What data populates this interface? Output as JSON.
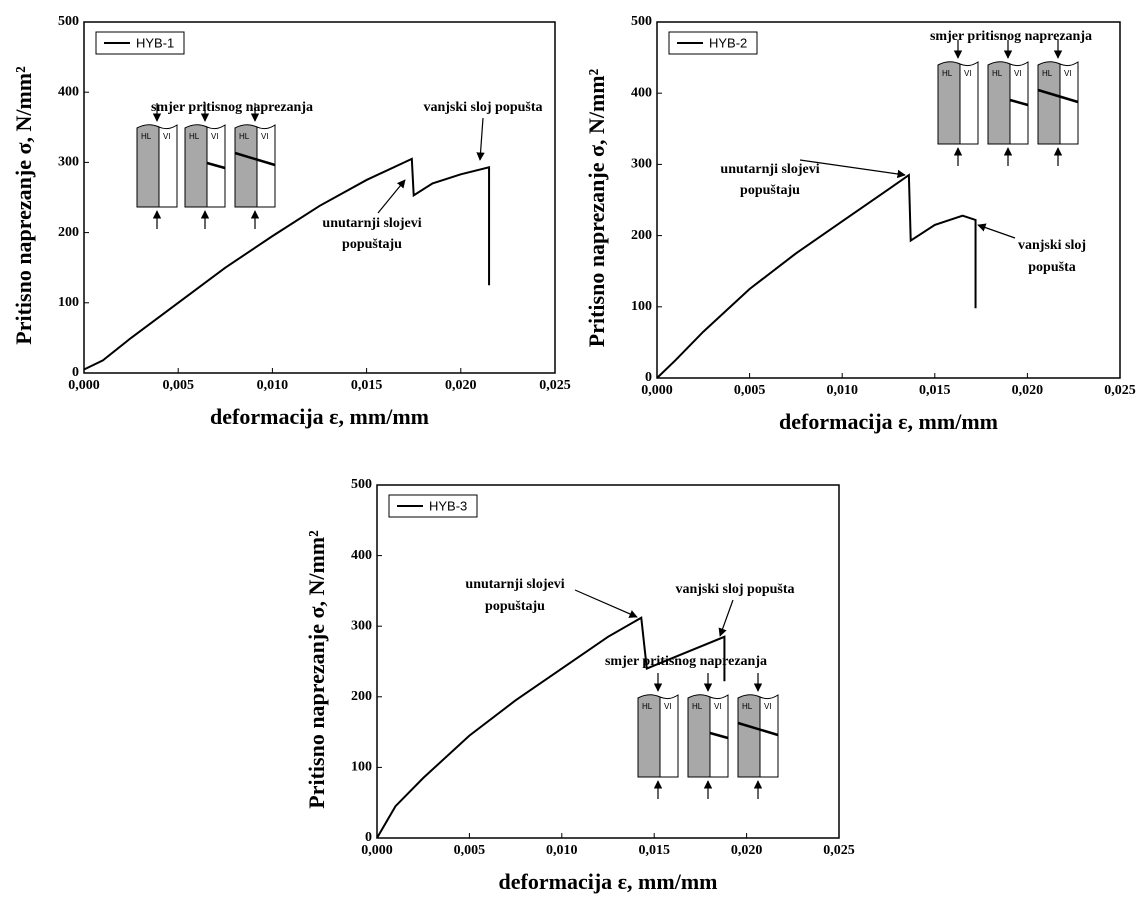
{
  "chart_data": [
    {
      "type": "line",
      "xlabel": "deformacija ε, mm/mm",
      "ylabel": "Pritisno naprezanje σ, N/mm²",
      "x": [
        0,
        0.001,
        0.0025,
        0.005,
        0.0075,
        0.01,
        0.0125,
        0.015,
        0.0174,
        0.0175,
        0.0185,
        0.02,
        0.0215,
        0.0215
      ],
      "series": [
        {
          "name": "HYB-1",
          "color": "#000000",
          "values": [
            5,
            18,
            50,
            100,
            150,
            195,
            238,
            275,
            305,
            253,
            270,
            283,
            293,
            125
          ]
        }
      ],
      "xlim": [
        0,
        0.025
      ],
      "xticks": [
        {
          "value": 0,
          "label": "0,000"
        },
        {
          "value": 0.005,
          "label": "0,005"
        },
        {
          "value": 0.01,
          "label": "0,010"
        },
        {
          "value": 0.015,
          "label": "0,015"
        },
        {
          "value": 0.02,
          "label": "0,020"
        },
        {
          "value": 0.025,
          "label": "0,025"
        }
      ],
      "ylim": [
        0,
        500
      ],
      "yticks": [
        0,
        100,
        200,
        300,
        400,
        500
      ],
      "legend": "upper left",
      "annotations": [
        [
          "vanjski sloj popušta"
        ],
        [
          "unutarnji slojevi",
          "popuštaju"
        ]
      ],
      "inset": {
        "title": "smjer pritisnog naprezanja",
        "labels": [
          "HL",
          "VI"
        ]
      }
    },
    {
      "type": "line",
      "xlabel": "deformacija ε, mm/mm",
      "ylabel": "Pritisno naprezanje σ, N/mm²",
      "x": [
        0,
        0.001,
        0.0025,
        0.005,
        0.0075,
        0.01,
        0.0125,
        0.0136,
        0.0137,
        0.015,
        0.0165,
        0.0172,
        0.0172
      ],
      "series": [
        {
          "name": "HYB-2",
          "color": "#000000",
          "values": [
            0,
            25,
            65,
            125,
            175,
            220,
            265,
            285,
            193,
            215,
            228,
            222,
            98
          ]
        }
      ],
      "xlim": [
        0,
        0.025
      ],
      "xticks": [
        {
          "value": 0,
          "label": "0,000"
        },
        {
          "value": 0.005,
          "label": "0,005"
        },
        {
          "value": 0.01,
          "label": "0,010"
        },
        {
          "value": 0.015,
          "label": "0,015"
        },
        {
          "value": 0.02,
          "label": "0,020"
        },
        {
          "value": 0.025,
          "label": "0,025"
        }
      ],
      "ylim": [
        0,
        500
      ],
      "yticks": [
        0,
        100,
        200,
        300,
        400,
        500
      ],
      "legend": "upper left",
      "annotations": [
        [
          "unutarnji slojevi",
          "popuštaju"
        ],
        [
          "vanjski sloj",
          "popušta"
        ]
      ],
      "inset": {
        "title": "smjer pritisnog naprezanja",
        "labels": [
          "HL",
          "VI"
        ]
      }
    },
    {
      "type": "line",
      "xlabel": "deformacija ε, mm/mm",
      "ylabel": "Pritisno naprezanje σ, N/mm²",
      "x": [
        0,
        0.001,
        0.0025,
        0.005,
        0.0075,
        0.01,
        0.0125,
        0.0143,
        0.0146,
        0.016,
        0.0188,
        0.0188
      ],
      "series": [
        {
          "name": "HYB-3",
          "color": "#000000",
          "values": [
            0,
            45,
            85,
            145,
            195,
            240,
            285,
            312,
            240,
            255,
            285,
            222
          ]
        }
      ],
      "xlim": [
        0,
        0.025
      ],
      "xticks": [
        {
          "value": 0,
          "label": "0,000"
        },
        {
          "value": 0.005,
          "label": "0,005"
        },
        {
          "value": 0.01,
          "label": "0,010"
        },
        {
          "value": 0.015,
          "label": "0,015"
        },
        {
          "value": 0.02,
          "label": "0,020"
        },
        {
          "value": 0.025,
          "label": "0,025"
        }
      ],
      "ylim": [
        0,
        500
      ],
      "yticks": [
        0,
        100,
        200,
        300,
        400,
        500
      ],
      "legend": "upper left",
      "annotations": [
        [
          "unutarnji slojevi",
          "popuštaju"
        ],
        [
          "vanjski sloj popušta"
        ]
      ],
      "inset": {
        "title": "smjer pritisnog naprezanja",
        "labels": [
          "HL",
          "VI"
        ]
      }
    }
  ]
}
